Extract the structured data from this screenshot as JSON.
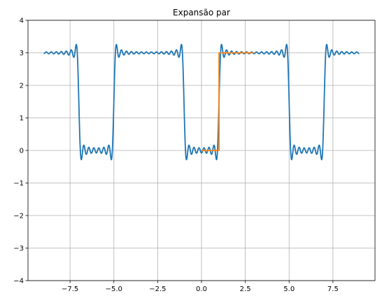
{
  "chart_data": {
    "type": "line",
    "title": "Expansão par",
    "xlabel": "",
    "ylabel": "",
    "xlim": [
      -9.9,
      9.9
    ],
    "ylim": [
      -4,
      4
    ],
    "grid": true,
    "x_ticks": [
      -7.5,
      -5.0,
      -2.5,
      0.0,
      2.5,
      5.0,
      7.5
    ],
    "x_tick_labels": [
      "−7.5",
      "−5.0",
      "−2.5",
      "0.0",
      "2.5",
      "5.0",
      "7.5"
    ],
    "y_ticks": [
      -4,
      -3,
      -2,
      -1,
      0,
      1,
      2,
      3,
      4
    ],
    "y_tick_labels": [
      "−4",
      "−3",
      "−2",
      "−1",
      "0",
      "1",
      "2",
      "3",
      "4"
    ],
    "series": [
      {
        "kind": "fourier-even-square-wave",
        "color": "#1f77b4",
        "x_range": [
          -9,
          9
        ],
        "period": 6,
        "low": 0,
        "high": 3,
        "low_interval": [
          -1,
          1
        ],
        "harmonics": 20
      },
      {
        "kind": "step",
        "color": "#ff7f0e",
        "x": [
          0,
          1,
          1,
          3
        ],
        "y": [
          0,
          0,
          3,
          3
        ]
      }
    ]
  }
}
